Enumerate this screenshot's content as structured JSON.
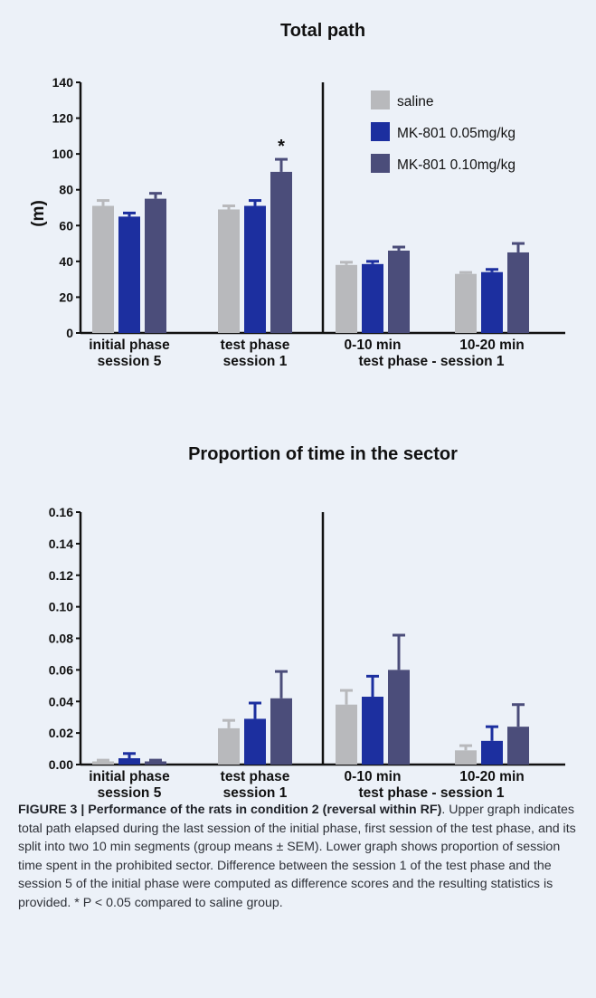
{
  "colors": {
    "saline": "#b8b9bc",
    "mk_low": "#1c2f9f",
    "mk_high": "#4b4d7a",
    "axis": "#111111",
    "panel_bg": "#ecf1f8"
  },
  "chart_data": [
    {
      "type": "bar",
      "title": "Total path",
      "ylabel": "(m)",
      "ylim": [
        0,
        140
      ],
      "yticks": [
        "0",
        "20",
        "40",
        "60",
        "80",
        "100",
        "120",
        "140"
      ],
      "categories": [
        [
          "initial phase",
          "session 5"
        ],
        [
          "test phase",
          "session 1"
        ],
        [
          "0-10 min",
          ""
        ],
        [
          "10-20 min",
          ""
        ]
      ],
      "group_label_right": "test phase - session 1",
      "series": [
        {
          "name": "saline",
          "values": [
            71,
            69,
            38,
            33
          ],
          "errors": [
            3,
            2,
            1.5,
            0.8
          ]
        },
        {
          "name": "MK-801 0.05mg/kg",
          "values": [
            65,
            71,
            38.5,
            34
          ],
          "errors": [
            2,
            3,
            1.5,
            1.5
          ]
        },
        {
          "name": "MK-801 0.10mg/kg",
          "values": [
            75,
            90,
            46,
            45
          ],
          "errors": [
            3,
            7,
            2,
            5
          ]
        }
      ],
      "annotations": [
        {
          "text": "*",
          "category": 1,
          "series": 2
        }
      ],
      "legend": "top-right"
    },
    {
      "type": "bar",
      "title": "Proportion of time in the sector",
      "ylabel": "",
      "ylim": [
        0,
        0.16
      ],
      "yticks": [
        "0.00",
        "0.02",
        "0.04",
        "0.06",
        "0.08",
        "0.10",
        "0.12",
        "0.14",
        "0.16"
      ],
      "categories": [
        [
          "initial phase",
          "session 5"
        ],
        [
          "test phase",
          "session 1"
        ],
        [
          "0-10 min",
          ""
        ],
        [
          "10-20 min",
          ""
        ]
      ],
      "group_label_right": "test phase - session 1",
      "series": [
        {
          "name": "saline",
          "values": [
            0.002,
            0.023,
            0.038,
            0.009
          ],
          "errors": [
            0.0008,
            0.005,
            0.009,
            0.003
          ]
        },
        {
          "name": "MK-801 0.05mg/kg",
          "values": [
            0.004,
            0.029,
            0.043,
            0.015
          ],
          "errors": [
            0.003,
            0.01,
            0.013,
            0.009
          ]
        },
        {
          "name": "MK-801 0.10mg/kg",
          "values": [
            0.002,
            0.042,
            0.06,
            0.024
          ],
          "errors": [
            0.0008,
            0.017,
            0.022,
            0.014
          ]
        }
      ],
      "legend": "none"
    }
  ],
  "caption": {
    "title": "FIGURE 3 | Performance of the rats in condition 2 (reversal within RF)",
    "title_end": ".",
    "body": "Upper graph indicates total path elapsed during the last session of the initial phase, first session of the test phase, and its split into two 10 min segments (group means ± SEM). Lower graph shows proportion of session time spent in the prohibited sector. Difference between the session 1 of the test phase and the session 5 of the initial phase were computed as difference scores and the resulting statistics is provided. * P < 0.05 compared to saline group."
  }
}
